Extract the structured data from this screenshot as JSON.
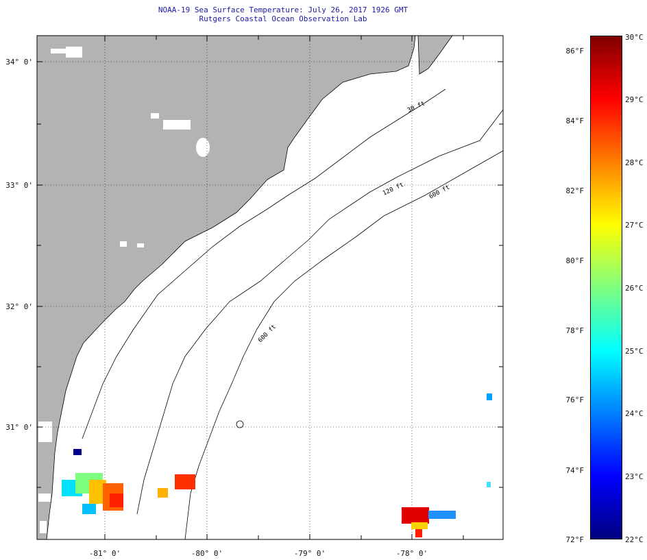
{
  "header": {
    "title": "NOAA-19 Sea Surface Temperature:  July 26, 2017 1926 GMT",
    "subtitle": "Rutgers Coastal Ocean Observation Lab"
  },
  "map": {
    "lat_labels": [
      "34° 0'",
      "33° 0'",
      "32° 0'",
      "31° 0'"
    ],
    "lon_labels": [
      "-81° 0'",
      "-80° 0'",
      "-79° 0'",
      "-78° 0'"
    ],
    "isobath_labels": [
      "30 ft",
      "120 ft",
      "600 ft",
      "600 ft"
    ],
    "colors": {
      "land": "#b3b3b3",
      "water": "#ffffff",
      "coastline": "#000000",
      "grid": "#000000"
    }
  },
  "colorbar": {
    "min_f": "72°F",
    "min_c": "22°C",
    "max_c": "30°C",
    "f_labels": [
      "86°F",
      "84°F",
      "82°F",
      "80°F",
      "78°F",
      "76°F",
      "74°F"
    ],
    "c_labels": [
      "29°C",
      "28°C",
      "27°C",
      "26°C",
      "25°C",
      "24°C",
      "23°C"
    ],
    "gradient": [
      "#00007f",
      "#0000ff",
      "#007fff",
      "#00ffff",
      "#7fff7f",
      "#ffff00",
      "#ff7f00",
      "#ff0000",
      "#7f0000"
    ]
  }
}
